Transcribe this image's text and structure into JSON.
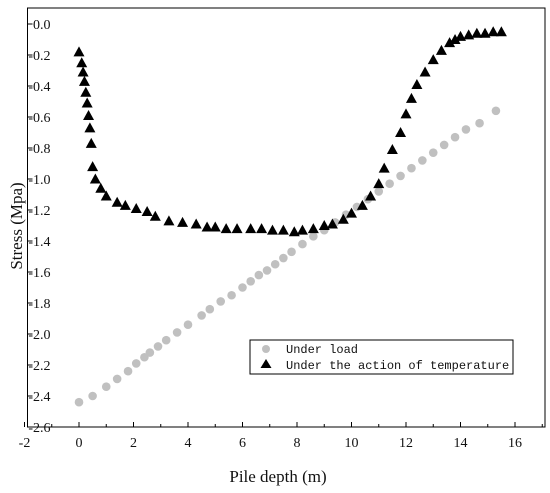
{
  "chart_data": {
    "type": "scatter",
    "xlabel": "Pile depth (m)",
    "ylabel": "Stress (Mpa)",
    "xlim": [
      -2,
      17
    ],
    "ylim": [
      -2.6,
      0.1
    ],
    "x_ticks": [
      -2,
      0,
      2,
      4,
      6,
      8,
      10,
      12,
      14,
      16
    ],
    "y_ticks": [
      0.0,
      -0.2,
      -0.4,
      -0.6,
      -0.8,
      -1.0,
      -1.2,
      -1.4,
      -1.6,
      -1.8,
      -2.0,
      -2.2,
      -2.4,
      -2.6
    ],
    "x_tick_labels": [
      "-2",
      "0",
      "2",
      "4",
      "6",
      "8",
      "10",
      "12",
      "14",
      "16"
    ],
    "y_tick_labels": [
      "0.0",
      "-0.2",
      "-0.4",
      "-0.6",
      "-0.8",
      "-1.0",
      "-1.2",
      "-1.4",
      "-1.6",
      "-1.8",
      "-2.0",
      "-2.2",
      "-2.4",
      "-2.6"
    ],
    "legend_position": "lower-right",
    "grid": false,
    "series": [
      {
        "name": "Under load",
        "marker": "circle",
        "color": "#c0c0c0",
        "points": [
          [
            0.0,
            -2.44
          ],
          [
            0.5,
            -2.4
          ],
          [
            1.0,
            -2.34
          ],
          [
            1.4,
            -2.29
          ],
          [
            1.8,
            -2.24
          ],
          [
            2.1,
            -2.19
          ],
          [
            2.4,
            -2.15
          ],
          [
            2.6,
            -2.12
          ],
          [
            2.9,
            -2.08
          ],
          [
            3.2,
            -2.04
          ],
          [
            3.6,
            -1.99
          ],
          [
            4.0,
            -1.94
          ],
          [
            4.5,
            -1.88
          ],
          [
            4.8,
            -1.84
          ],
          [
            5.2,
            -1.79
          ],
          [
            5.6,
            -1.75
          ],
          [
            6.0,
            -1.7
          ],
          [
            6.3,
            -1.66
          ],
          [
            6.6,
            -1.62
          ],
          [
            6.9,
            -1.59
          ],
          [
            7.2,
            -1.55
          ],
          [
            7.5,
            -1.51
          ],
          [
            7.8,
            -1.47
          ],
          [
            8.2,
            -1.42
          ],
          [
            8.6,
            -1.37
          ],
          [
            9.0,
            -1.33
          ],
          [
            9.4,
            -1.28
          ],
          [
            9.8,
            -1.23
          ],
          [
            10.2,
            -1.18
          ],
          [
            10.6,
            -1.13
          ],
          [
            11.0,
            -1.08
          ],
          [
            11.4,
            -1.03
          ],
          [
            11.8,
            -0.98
          ],
          [
            12.2,
            -0.93
          ],
          [
            12.6,
            -0.88
          ],
          [
            13.0,
            -0.83
          ],
          [
            13.4,
            -0.78
          ],
          [
            13.8,
            -0.73
          ],
          [
            14.2,
            -0.68
          ],
          [
            14.7,
            -0.64
          ],
          [
            15.3,
            -0.56
          ]
        ]
      },
      {
        "name": "Under the action of temperature",
        "marker": "triangle",
        "color": "#000000",
        "points": [
          [
            0.0,
            -0.18
          ],
          [
            0.1,
            -0.25
          ],
          [
            0.15,
            -0.31
          ],
          [
            0.2,
            -0.37
          ],
          [
            0.25,
            -0.44
          ],
          [
            0.3,
            -0.51
          ],
          [
            0.35,
            -0.59
          ],
          [
            0.4,
            -0.67
          ],
          [
            0.45,
            -0.77
          ],
          [
            0.5,
            -0.92
          ],
          [
            0.6,
            -1.0
          ],
          [
            0.8,
            -1.06
          ],
          [
            1.0,
            -1.11
          ],
          [
            1.4,
            -1.15
          ],
          [
            1.7,
            -1.17
          ],
          [
            2.1,
            -1.19
          ],
          [
            2.5,
            -1.21
          ],
          [
            2.8,
            -1.24
          ],
          [
            3.3,
            -1.27
          ],
          [
            3.8,
            -1.28
          ],
          [
            4.3,
            -1.29
          ],
          [
            4.7,
            -1.31
          ],
          [
            5.0,
            -1.31
          ],
          [
            5.4,
            -1.32
          ],
          [
            5.8,
            -1.32
          ],
          [
            6.3,
            -1.32
          ],
          [
            6.7,
            -1.32
          ],
          [
            7.1,
            -1.33
          ],
          [
            7.5,
            -1.33
          ],
          [
            7.9,
            -1.34
          ],
          [
            8.2,
            -1.33
          ],
          [
            8.6,
            -1.32
          ],
          [
            9.0,
            -1.3
          ],
          [
            9.3,
            -1.29
          ],
          [
            9.7,
            -1.26
          ],
          [
            10.0,
            -1.22
          ],
          [
            10.4,
            -1.17
          ],
          [
            10.7,
            -1.11
          ],
          [
            11.0,
            -1.03
          ],
          [
            11.2,
            -0.93
          ],
          [
            11.5,
            -0.81
          ],
          [
            11.8,
            -0.7
          ],
          [
            12.0,
            -0.58
          ],
          [
            12.2,
            -0.48
          ],
          [
            12.4,
            -0.39
          ],
          [
            12.7,
            -0.31
          ],
          [
            13.0,
            -0.23
          ],
          [
            13.3,
            -0.17
          ],
          [
            13.6,
            -0.12
          ],
          [
            13.8,
            -0.1
          ],
          [
            14.0,
            -0.08
          ],
          [
            14.3,
            -0.07
          ],
          [
            14.6,
            -0.06
          ],
          [
            14.9,
            -0.06
          ],
          [
            15.2,
            -0.05
          ],
          [
            15.5,
            -0.05
          ]
        ]
      }
    ]
  }
}
